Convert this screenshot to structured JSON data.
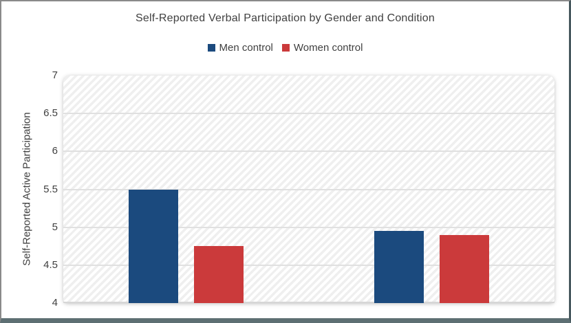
{
  "chart_data": {
    "type": "bar",
    "title": "Self-Reported Verbal Participation by Gender and Condition",
    "xlabel": "",
    "ylabel": "Self-Reported Active Participation",
    "categories": [
      "",
      ""
    ],
    "series": [
      {
        "name": "Men control",
        "color": "#1B4A7E",
        "values": [
          5.5,
          4.95
        ]
      },
      {
        "name": "Women control",
        "color": "#CB3A3B",
        "values": [
          4.75,
          4.9
        ]
      }
    ],
    "ylim": [
      4,
      7
    ],
    "yticks": [
      4,
      4.5,
      5,
      5.5,
      6,
      6.5,
      7
    ],
    "grid": true,
    "legend_position": "top",
    "plot_background": "diagonal-hatch"
  }
}
